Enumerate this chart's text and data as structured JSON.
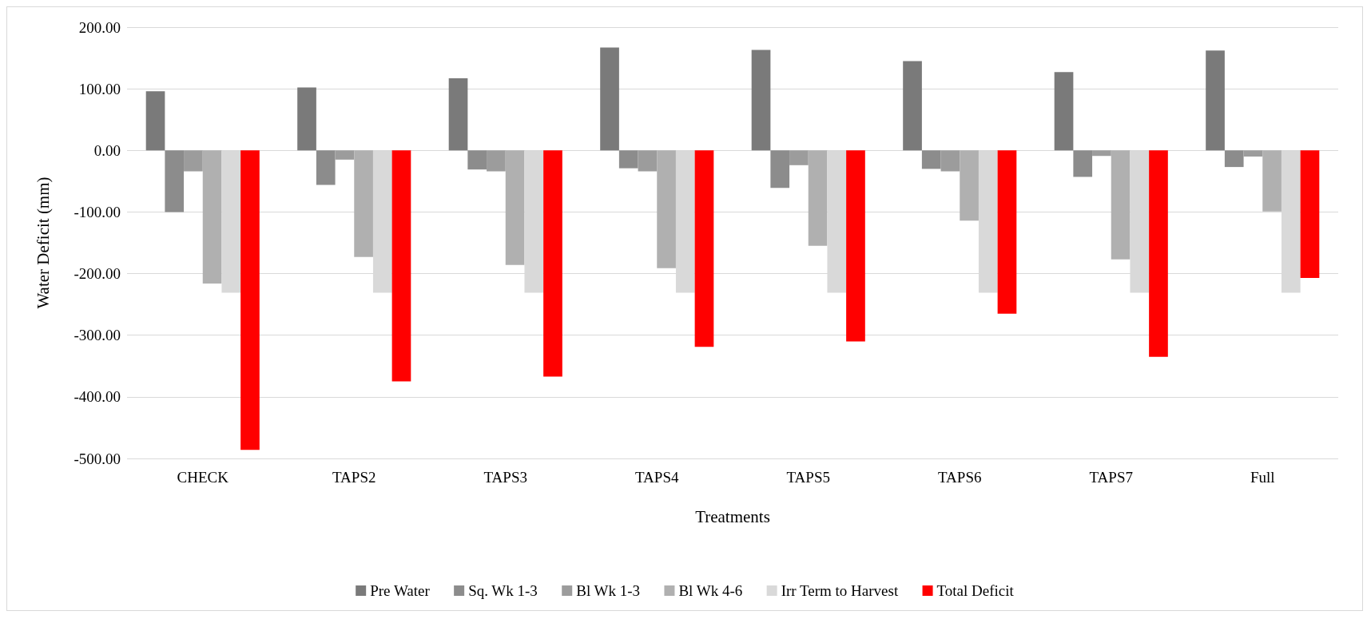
{
  "chart_data": {
    "type": "bar",
    "xlabel": "Treatments",
    "ylabel": "Water Deficit (mm)",
    "categories": [
      "CHECK",
      "TAPS2",
      "TAPS3",
      "TAPS4",
      "TAPS5",
      "TAPS6",
      "TAPS7",
      "Full"
    ],
    "series": [
      {
        "name": "Pre Water",
        "color": "#7a7a7a",
        "values": [
          96,
          102,
          117,
          167,
          163,
          145,
          127,
          162
        ]
      },
      {
        "name": "Sq. Wk 1-3",
        "color": "#8c8c8c",
        "values": [
          -100,
          -56,
          -31,
          -29,
          -61,
          -30,
          -43,
          -27
        ]
      },
      {
        "name": "Bl Wk 1-3",
        "color": "#9c9c9c",
        "values": [
          -34,
          -15,
          -34,
          -34,
          -24,
          -34,
          -9,
          -10
        ]
      },
      {
        "name": "Bl Wk 4-6",
        "color": "#b0b0b0",
        "values": [
          -216,
          -173,
          -186,
          -191,
          -155,
          -114,
          -177,
          -99
        ]
      },
      {
        "name": "Irr Term to Harvest",
        "color": "#d9d9d9",
        "values": [
          -231,
          -231,
          -231,
          -231,
          -231,
          -231,
          -231,
          -231
        ]
      },
      {
        "name": "Total Deficit",
        "color": "#ff0000",
        "values": [
          -486,
          -375,
          -367,
          -319,
          -310,
          -265,
          -335,
          -207
        ]
      }
    ],
    "ylim": [
      -500,
      200
    ],
    "yticks": [
      {
        "value": -500,
        "label": "-500.00"
      },
      {
        "value": -400,
        "label": "-400.00"
      },
      {
        "value": -300,
        "label": "-300.00"
      },
      {
        "value": -200,
        "label": "-200.00"
      },
      {
        "value": -100,
        "label": "-100.00"
      },
      {
        "value": 0,
        "label": "0.00"
      },
      {
        "value": 100,
        "label": "100.00"
      },
      {
        "value": 200,
        "label": "200.00"
      }
    ],
    "grid": "y",
    "legend": "bottom"
  }
}
